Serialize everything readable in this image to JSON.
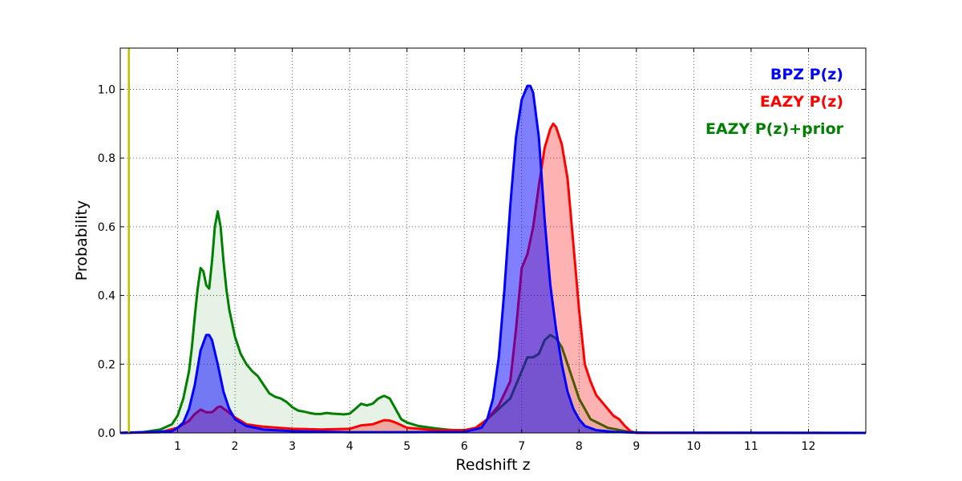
{
  "chart_data": {
    "type": "area",
    "xlabel": "Redshift z",
    "ylabel": "Probability",
    "xlim": [
      0,
      13
    ],
    "ylim": [
      0,
      1.12
    ],
    "x_ticks": [
      1,
      2,
      3,
      4,
      5,
      6,
      7,
      8,
      9,
      10,
      11,
      12
    ],
    "y_ticks": [
      0.0,
      0.2,
      0.4,
      0.6,
      0.8,
      1.0
    ],
    "x_tick_labels": [
      "1",
      "2",
      "3",
      "4",
      "5",
      "6",
      "7",
      "8",
      "9",
      "10",
      "11",
      "12"
    ],
    "y_tick_labels": [
      "0.0",
      "0.2",
      "0.4",
      "0.6",
      "0.8",
      "1.0"
    ],
    "grid": true,
    "legend_position": "top-right",
    "vertical_marker": {
      "x": 0.15,
      "color": "#bfbf00"
    },
    "series": [
      {
        "name": "EAZY P(z)+prior",
        "color": "#008000",
        "fill_opacity": 0.1,
        "points": [
          [
            0,
            0
          ],
          [
            0.4,
            0.002
          ],
          [
            0.7,
            0.01
          ],
          [
            0.9,
            0.025
          ],
          [
            1.0,
            0.05
          ],
          [
            1.1,
            0.1
          ],
          [
            1.2,
            0.18
          ],
          [
            1.25,
            0.25
          ],
          [
            1.3,
            0.34
          ],
          [
            1.35,
            0.42
          ],
          [
            1.4,
            0.48
          ],
          [
            1.45,
            0.47
          ],
          [
            1.5,
            0.43
          ],
          [
            1.55,
            0.42
          ],
          [
            1.6,
            0.5
          ],
          [
            1.65,
            0.6
          ],
          [
            1.7,
            0.645
          ],
          [
            1.75,
            0.6
          ],
          [
            1.8,
            0.5
          ],
          [
            1.85,
            0.42
          ],
          [
            1.9,
            0.36
          ],
          [
            2.0,
            0.28
          ],
          [
            2.1,
            0.23
          ],
          [
            2.2,
            0.2
          ],
          [
            2.3,
            0.18
          ],
          [
            2.4,
            0.165
          ],
          [
            2.5,
            0.14
          ],
          [
            2.6,
            0.115
          ],
          [
            2.7,
            0.105
          ],
          [
            2.8,
            0.1
          ],
          [
            2.9,
            0.09
          ],
          [
            3.0,
            0.075
          ],
          [
            3.1,
            0.065
          ],
          [
            3.2,
            0.062
          ],
          [
            3.3,
            0.058
          ],
          [
            3.4,
            0.055
          ],
          [
            3.5,
            0.055
          ],
          [
            3.6,
            0.058
          ],
          [
            3.7,
            0.056
          ],
          [
            3.8,
            0.055
          ],
          [
            3.9,
            0.054
          ],
          [
            4.0,
            0.056
          ],
          [
            4.1,
            0.07
          ],
          [
            4.2,
            0.085
          ],
          [
            4.3,
            0.08
          ],
          [
            4.4,
            0.085
          ],
          [
            4.5,
            0.1
          ],
          [
            4.6,
            0.108
          ],
          [
            4.7,
            0.1
          ],
          [
            4.8,
            0.07
          ],
          [
            4.9,
            0.04
          ],
          [
            5.0,
            0.03
          ],
          [
            5.2,
            0.02
          ],
          [
            5.5,
            0.013
          ],
          [
            5.8,
            0.008
          ],
          [
            6.0,
            0.008
          ],
          [
            6.2,
            0.012
          ],
          [
            6.4,
            0.04
          ],
          [
            6.6,
            0.07
          ],
          [
            6.8,
            0.1
          ],
          [
            7.0,
            0.18
          ],
          [
            7.1,
            0.22
          ],
          [
            7.2,
            0.22
          ],
          [
            7.3,
            0.23
          ],
          [
            7.4,
            0.27
          ],
          [
            7.5,
            0.285
          ],
          [
            7.6,
            0.275
          ],
          [
            7.7,
            0.25
          ],
          [
            7.8,
            0.2
          ],
          [
            7.9,
            0.15
          ],
          [
            8.0,
            0.1
          ],
          [
            8.2,
            0.04
          ],
          [
            8.5,
            0.015
          ],
          [
            8.9,
            0.002
          ],
          [
            9.2,
            0
          ],
          [
            13,
            0
          ]
        ]
      },
      {
        "name": "EAZY P(z)",
        "color": "#ff0000",
        "fill_opacity": 0.3,
        "points": [
          [
            0,
            0
          ],
          [
            0.7,
            0.002
          ],
          [
            1.0,
            0.015
          ],
          [
            1.2,
            0.035
          ],
          [
            1.3,
            0.055
          ],
          [
            1.4,
            0.068
          ],
          [
            1.5,
            0.06
          ],
          [
            1.6,
            0.06
          ],
          [
            1.7,
            0.075
          ],
          [
            1.75,
            0.077
          ],
          [
            1.85,
            0.065
          ],
          [
            2.0,
            0.045
          ],
          [
            2.2,
            0.025
          ],
          [
            2.5,
            0.018
          ],
          [
            3.0,
            0.012
          ],
          [
            3.5,
            0.01
          ],
          [
            4.0,
            0.012
          ],
          [
            4.2,
            0.022
          ],
          [
            4.4,
            0.025
          ],
          [
            4.6,
            0.037
          ],
          [
            4.7,
            0.036
          ],
          [
            4.8,
            0.03
          ],
          [
            5.0,
            0.015
          ],
          [
            5.5,
            0.008
          ],
          [
            6.0,
            0.008
          ],
          [
            6.2,
            0.015
          ],
          [
            6.4,
            0.04
          ],
          [
            6.6,
            0.08
          ],
          [
            6.8,
            0.15
          ],
          [
            6.9,
            0.3
          ],
          [
            7.0,
            0.48
          ],
          [
            7.1,
            0.52
          ],
          [
            7.2,
            0.6
          ],
          [
            7.3,
            0.72
          ],
          [
            7.4,
            0.83
          ],
          [
            7.5,
            0.885
          ],
          [
            7.55,
            0.9
          ],
          [
            7.6,
            0.89
          ],
          [
            7.7,
            0.84
          ],
          [
            7.8,
            0.74
          ],
          [
            7.9,
            0.55
          ],
          [
            8.0,
            0.36
          ],
          [
            8.1,
            0.2
          ],
          [
            8.2,
            0.15
          ],
          [
            8.3,
            0.11
          ],
          [
            8.4,
            0.09
          ],
          [
            8.5,
            0.07
          ],
          [
            8.6,
            0.05
          ],
          [
            8.7,
            0.04
          ],
          [
            8.8,
            0.02
          ],
          [
            8.9,
            0.005
          ],
          [
            9.0,
            0
          ],
          [
            13,
            0
          ]
        ]
      },
      {
        "name": "BPZ P(z)",
        "color": "#0000ff",
        "fill_opacity": 0.5,
        "points": [
          [
            0,
            0
          ],
          [
            0.9,
            0.005
          ],
          [
            1.0,
            0.015
          ],
          [
            1.1,
            0.03
          ],
          [
            1.2,
            0.07
          ],
          [
            1.3,
            0.14
          ],
          [
            1.4,
            0.24
          ],
          [
            1.5,
            0.285
          ],
          [
            1.55,
            0.285
          ],
          [
            1.6,
            0.27
          ],
          [
            1.7,
            0.2
          ],
          [
            1.8,
            0.12
          ],
          [
            1.9,
            0.07
          ],
          [
            2.0,
            0.04
          ],
          [
            2.2,
            0.02
          ],
          [
            2.5,
            0.01
          ],
          [
            3.0,
            0.005
          ],
          [
            4.0,
            0.002
          ],
          [
            5.0,
            0.002
          ],
          [
            6.0,
            0.003
          ],
          [
            6.3,
            0.015
          ],
          [
            6.4,
            0.04
          ],
          [
            6.5,
            0.1
          ],
          [
            6.6,
            0.22
          ],
          [
            6.7,
            0.42
          ],
          [
            6.8,
            0.66
          ],
          [
            6.9,
            0.86
          ],
          [
            7.0,
            0.97
          ],
          [
            7.1,
            1.01
          ],
          [
            7.15,
            1.01
          ],
          [
            7.2,
            0.99
          ],
          [
            7.3,
            0.86
          ],
          [
            7.4,
            0.62
          ],
          [
            7.5,
            0.43
          ],
          [
            7.6,
            0.3
          ],
          [
            7.7,
            0.2
          ],
          [
            7.8,
            0.12
          ],
          [
            7.9,
            0.07
          ],
          [
            8.0,
            0.04
          ],
          [
            8.1,
            0.02
          ],
          [
            8.3,
            0.008
          ],
          [
            8.6,
            0.003
          ],
          [
            9.0,
            0.001
          ],
          [
            13,
            0
          ]
        ]
      }
    ],
    "legend": [
      {
        "label": "BPZ P(z)",
        "color": "#0000ff"
      },
      {
        "label": "EAZY P(z)",
        "color": "#ff0000"
      },
      {
        "label": "EAZY P(z)+prior",
        "color": "#008000"
      }
    ]
  }
}
